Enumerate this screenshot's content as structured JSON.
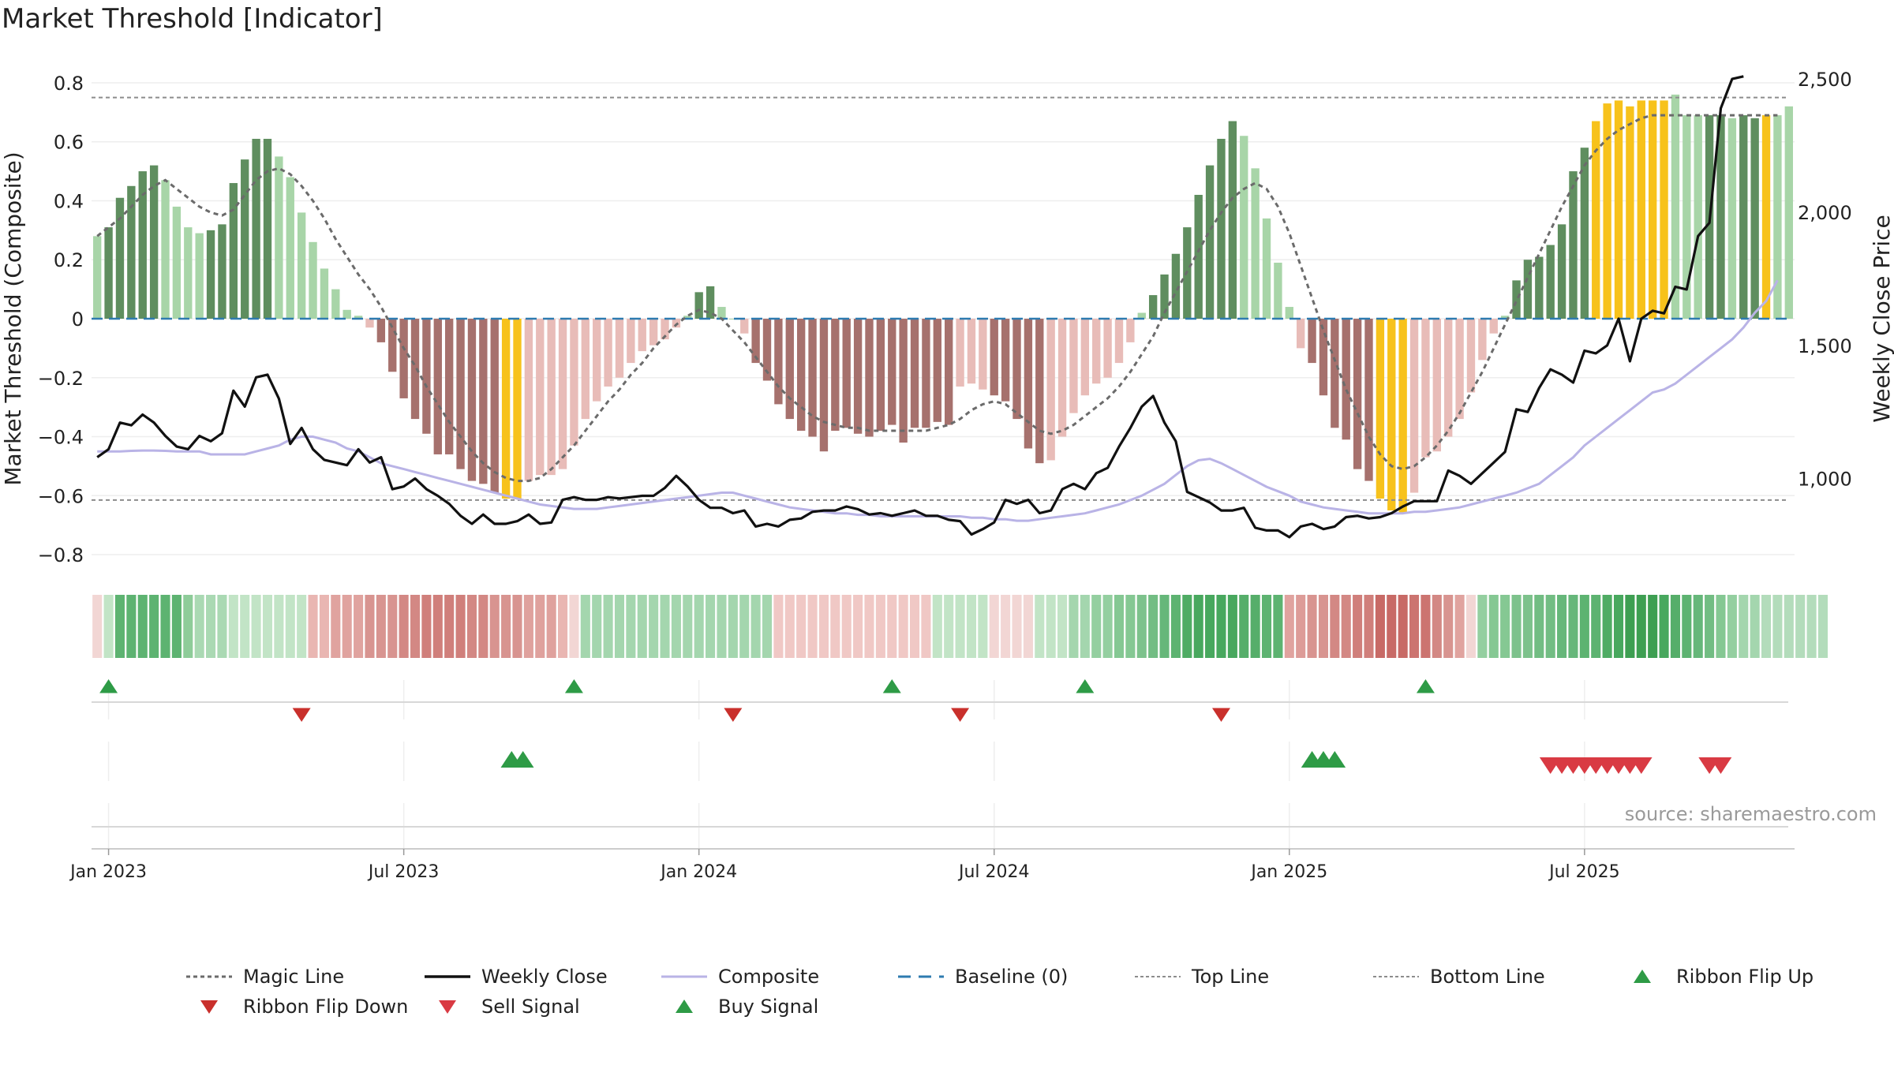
{
  "title": "Market Threshold [Indicator]",
  "source": "source: sharemaestro.com",
  "colors": {
    "strong_up": "#5f8e5f",
    "weak_up": "#a8d5a8",
    "strong_down": "#a6716d",
    "weak_down": "#e8bcb8",
    "extreme": "#f7c21b",
    "magic": "#6b6b6b",
    "close": "#111111",
    "composite": "#b9b3e6",
    "baseline": "#2e7bb0",
    "refline": "#8c8c8c",
    "buy": "#2e9b46",
    "sell": "#d93a43",
    "flip_down": "#c9302c"
  },
  "chart_data": {
    "type": "bar",
    "start_date": "2022-12-26",
    "interval_days": 7,
    "y_left": {
      "label": "Market Threshold (Composite)",
      "lim": [
        -0.84,
        0.84
      ],
      "ticks": [
        0.8,
        0.6,
        0.4,
        0.2,
        0,
        -0.2,
        -0.4,
        -0.6,
        -0.8
      ],
      "tick_labels": [
        "0.8",
        "0.6",
        "0.4",
        "0.2",
        "0",
        "−0.2",
        "−0.4",
        "−0.6",
        "−0.8"
      ]
    },
    "y_right": {
      "label": "Weekly Close Price",
      "lim": [
        670,
        2530
      ],
      "ticks": [
        2500,
        2000,
        1500,
        1000
      ],
      "tick_labels": [
        "2,500",
        "2,000",
        "1,500",
        "1,000"
      ]
    },
    "x_ticks": [
      {
        "label": "Jan 2023",
        "index": 1
      },
      {
        "label": "Jul 2023",
        "index": 27
      },
      {
        "label": "Jan 2024",
        "index": 53
      },
      {
        "label": "Jul 2024",
        "index": 79
      },
      {
        "label": "Jan 2025",
        "index": 105
      },
      {
        "label": "Jul 2025",
        "index": 131
      }
    ],
    "top_line": 0.75,
    "bottom_line": -0.615,
    "baseline": 0,
    "bar_values": [
      0.28,
      0.31,
      0.41,
      0.45,
      0.5,
      0.52,
      0.47,
      0.38,
      0.31,
      0.29,
      0.3,
      0.32,
      0.46,
      0.54,
      0.61,
      0.61,
      0.55,
      0.48,
      0.36,
      0.26,
      0.17,
      0.1,
      0.03,
      0.01,
      -0.03,
      -0.08,
      -0.18,
      -0.27,
      -0.34,
      -0.39,
      -0.46,
      -0.46,
      -0.51,
      -0.55,
      -0.56,
      -0.59,
      -0.61,
      -0.61,
      -0.55,
      -0.53,
      -0.53,
      -0.51,
      -0.43,
      -0.34,
      -0.28,
      -0.23,
      -0.2,
      -0.15,
      -0.11,
      -0.09,
      -0.07,
      -0.03,
      0.01,
      0.09,
      0.11,
      0.04,
      0.0,
      -0.05,
      -0.15,
      -0.21,
      -0.29,
      -0.34,
      -0.38,
      -0.4,
      -0.45,
      -0.38,
      -0.37,
      -0.39,
      -0.4,
      -0.38,
      -0.36,
      -0.42,
      -0.37,
      -0.37,
      -0.35,
      -0.36,
      -0.23,
      -0.22,
      -0.24,
      -0.26,
      -0.28,
      -0.34,
      -0.44,
      -0.49,
      -0.48,
      -0.4,
      -0.32,
      -0.26,
      -0.22,
      -0.2,
      -0.15,
      -0.08,
      0.02,
      0.08,
      0.15,
      0.22,
      0.31,
      0.42,
      0.52,
      0.61,
      0.67,
      0.62,
      0.51,
      0.34,
      0.19,
      0.04,
      -0.1,
      -0.15,
      -0.26,
      -0.37,
      -0.41,
      -0.51,
      -0.55,
      -0.61,
      -0.65,
      -0.66,
      -0.59,
      -0.47,
      -0.45,
      -0.4,
      -0.34,
      -0.25,
      -0.14,
      -0.05,
      0.01,
      0.13,
      0.2,
      0.21,
      0.25,
      0.32,
      0.5,
      0.58,
      0.67,
      0.73,
      0.74,
      0.72,
      0.74,
      0.74,
      0.74,
      0.76,
      0.69,
      0.69,
      0.69,
      0.69,
      0.68,
      0.69,
      0.68,
      0.69,
      0.69,
      0.72
    ],
    "bar_classes": [
      "W",
      "S",
      "S",
      "S",
      "S",
      "S",
      "W",
      "W",
      "W",
      "W",
      "S",
      "S",
      "S",
      "S",
      "S",
      "S",
      "W",
      "W",
      "W",
      "W",
      "W",
      "W",
      "W",
      "W",
      "w",
      "s",
      "s",
      "s",
      "s",
      "s",
      "s",
      "s",
      "s",
      "s",
      "s",
      "s",
      "E",
      "E",
      "w",
      "w",
      "w",
      "w",
      "w",
      "w",
      "w",
      "w",
      "w",
      "w",
      "w",
      "w",
      "w",
      "w",
      "W",
      "S",
      "S",
      "W",
      "W",
      "w",
      "s",
      "s",
      "s",
      "s",
      "s",
      "s",
      "s",
      "s",
      "s",
      "s",
      "s",
      "s",
      "s",
      "s",
      "s",
      "s",
      "s",
      "s",
      "w",
      "w",
      "w",
      "s",
      "s",
      "s",
      "s",
      "s",
      "w",
      "w",
      "w",
      "w",
      "w",
      "w",
      "w",
      "w",
      "W",
      "S",
      "S",
      "S",
      "S",
      "S",
      "S",
      "S",
      "S",
      "W",
      "W",
      "W",
      "W",
      "W",
      "w",
      "s",
      "s",
      "s",
      "s",
      "s",
      "s",
      "E",
      "E",
      "E",
      "w",
      "w",
      "w",
      "w",
      "w",
      "w",
      "w",
      "w",
      "W",
      "S",
      "S",
      "S",
      "S",
      "S",
      "S",
      "S",
      "E",
      "E",
      "E",
      "E",
      "E",
      "E",
      "E",
      "W",
      "W",
      "W",
      "S",
      "S",
      "W",
      "S",
      "S",
      "E"
    ],
    "magic_line": [
      0.28,
      0.31,
      0.34,
      0.38,
      0.42,
      0.45,
      0.47,
      0.44,
      0.41,
      0.38,
      0.36,
      0.35,
      0.37,
      0.42,
      0.47,
      0.5,
      0.51,
      0.49,
      0.45,
      0.4,
      0.34,
      0.27,
      0.21,
      0.15,
      0.1,
      0.04,
      -0.03,
      -0.1,
      -0.16,
      -0.23,
      -0.29,
      -0.35,
      -0.4,
      -0.45,
      -0.49,
      -0.52,
      -0.54,
      -0.55,
      -0.55,
      -0.54,
      -0.51,
      -0.47,
      -0.43,
      -0.38,
      -0.33,
      -0.28,
      -0.24,
      -0.19,
      -0.15,
      -0.1,
      -0.06,
      -0.02,
      0.01,
      0.03,
      0.02,
      0.0,
      -0.04,
      -0.08,
      -0.13,
      -0.18,
      -0.23,
      -0.27,
      -0.3,
      -0.33,
      -0.35,
      -0.36,
      -0.37,
      -0.37,
      -0.38,
      -0.38,
      -0.38,
      -0.38,
      -0.38,
      -0.38,
      -0.37,
      -0.36,
      -0.34,
      -0.31,
      -0.29,
      -0.28,
      -0.29,
      -0.32,
      -0.35,
      -0.38,
      -0.39,
      -0.38,
      -0.36,
      -0.33,
      -0.3,
      -0.27,
      -0.23,
      -0.18,
      -0.12,
      -0.06,
      0.02,
      0.09,
      0.16,
      0.23,
      0.3,
      0.36,
      0.41,
      0.44,
      0.46,
      0.44,
      0.38,
      0.29,
      0.18,
      0.07,
      -0.04,
      -0.14,
      -0.24,
      -0.32,
      -0.4,
      -0.46,
      -0.5,
      -0.51,
      -0.5,
      -0.47,
      -0.43,
      -0.38,
      -0.32,
      -0.25,
      -0.18,
      -0.1,
      -0.02,
      0.06,
      0.14,
      0.22,
      0.3,
      0.38,
      0.45,
      0.52,
      0.57,
      0.61,
      0.64,
      0.66,
      0.68,
      0.69,
      0.69,
      0.69,
      0.69,
      0.69,
      0.69,
      0.69,
      0.69,
      0.69,
      0.69,
      0.69,
      0.69
    ],
    "composite": [
      -0.45,
      -0.45,
      -0.45,
      -0.448,
      -0.447,
      -0.447,
      -0.448,
      -0.45,
      -0.45,
      -0.45,
      -0.46,
      -0.46,
      -0.46,
      -0.46,
      -0.45,
      -0.44,
      -0.43,
      -0.41,
      -0.4,
      -0.4,
      -0.41,
      -0.42,
      -0.44,
      -0.45,
      -0.47,
      -0.49,
      -0.5,
      -0.51,
      -0.52,
      -0.53,
      -0.54,
      -0.55,
      -0.56,
      -0.57,
      -0.58,
      -0.59,
      -0.6,
      -0.61,
      -0.62,
      -0.63,
      -0.635,
      -0.64,
      -0.645,
      -0.645,
      -0.645,
      -0.64,
      -0.635,
      -0.63,
      -0.625,
      -0.62,
      -0.615,
      -0.61,
      -0.605,
      -0.6,
      -0.595,
      -0.59,
      -0.59,
      -0.6,
      -0.61,
      -0.62,
      -0.63,
      -0.64,
      -0.645,
      -0.65,
      -0.655,
      -0.66,
      -0.66,
      -0.665,
      -0.665,
      -0.67,
      -0.67,
      -0.67,
      -0.67,
      -0.67,
      -0.67,
      -0.67,
      -0.67,
      -0.675,
      -0.675,
      -0.68,
      -0.68,
      -0.685,
      -0.685,
      -0.68,
      -0.675,
      -0.67,
      -0.665,
      -0.66,
      -0.65,
      -0.64,
      -0.63,
      -0.615,
      -0.6,
      -0.58,
      -0.56,
      -0.53,
      -0.5,
      -0.48,
      -0.475,
      -0.49,
      -0.51,
      -0.53,
      -0.55,
      -0.57,
      -0.585,
      -0.6,
      -0.62,
      -0.63,
      -0.64,
      -0.645,
      -0.65,
      -0.655,
      -0.66,
      -0.66,
      -0.66,
      -0.66,
      -0.655,
      -0.655,
      -0.65,
      -0.645,
      -0.64,
      -0.63,
      -0.62,
      -0.61,
      -0.6,
      -0.59,
      -0.575,
      -0.56,
      -0.53,
      -0.5,
      -0.47,
      -0.43,
      -0.4,
      -0.37,
      -0.34,
      -0.31,
      -0.28,
      -0.25,
      -0.24,
      -0.22,
      -0.19,
      -0.16,
      -0.13,
      -0.1,
      -0.07,
      -0.03,
      0.02,
      0.06,
      0.13
    ],
    "weekly_close": [
      1080,
      1110,
      1210,
      1200,
      1240,
      1210,
      1160,
      1120,
      1110,
      1160,
      1140,
      1170,
      1330,
      1270,
      1380,
      1390,
      1300,
      1130,
      1190,
      1110,
      1070,
      1060,
      1050,
      1110,
      1060,
      1080,
      960,
      970,
      1000,
      960,
      935,
      905,
      860,
      830,
      865,
      830,
      830,
      840,
      865,
      830,
      835,
      920,
      930,
      920,
      920,
      930,
      925,
      930,
      935,
      935,
      965,
      1010,
      970,
      920,
      890,
      890,
      870,
      880,
      820,
      830,
      820,
      845,
      850,
      875,
      880,
      880,
      895,
      885,
      865,
      870,
      860,
      870,
      880,
      860,
      860,
      845,
      840,
      790,
      810,
      835,
      920,
      905,
      920,
      870,
      880,
      960,
      980,
      960,
      1020,
      1040,
      1120,
      1190,
      1270,
      1310,
      1210,
      1140,
      950,
      930,
      910,
      880,
      880,
      890,
      815,
      805,
      805,
      780,
      820,
      830,
      810,
      820,
      855,
      860,
      850,
      855,
      870,
      895,
      915,
      915,
      915,
      1030,
      1010,
      980,
      1020,
      1060,
      1100,
      1260,
      1250,
      1340,
      1410,
      1390,
      1360,
      1480,
      1470,
      1500,
      1600,
      1440,
      1600,
      1630,
      1620,
      1720,
      1710,
      1910,
      1960,
      2390,
      2500,
      2510
    ]
  },
  "ribbon": {
    "colors": [
      "#f2d6d4",
      "#c2e4c6",
      "#5db371",
      "#5db371",
      "#5db371",
      "#5db371",
      "#5db371",
      "#5db371",
      "#8ecc99",
      "#aad9b3",
      "#aad9b3",
      "#aad9b3",
      "#c2e4c6",
      "#c2e4c6",
      "#c2e4c6",
      "#c2e4c6",
      "#c2e4c6",
      "#c2e4c6",
      "#c2e4c6",
      "#e9b6b2",
      "#e9b6b2",
      "#e0a39f",
      "#e0a39f",
      "#e0a39f",
      "#d89490",
      "#d89490",
      "#d89490",
      "#d38884",
      "#d38884",
      "#d07f7b",
      "#d07f7b",
      "#d07f7b",
      "#d07f7b",
      "#d38884",
      "#d38884",
      "#d89490",
      "#d89490",
      "#d89490",
      "#dfa19d",
      "#dfa19d",
      "#dfa19d",
      "#e9b6b2",
      "#f2d6d4",
      "#a4d6ae",
      "#a4d6ae",
      "#a4d6ae",
      "#a4d6ae",
      "#a4d6ae",
      "#a4d6ae",
      "#a4d6ae",
      "#a4d6ae",
      "#a4d6ae",
      "#a4d6ae",
      "#a4d6ae",
      "#a4d6ae",
      "#a4d6ae",
      "#a4d6ae",
      "#a4d6ae",
      "#a4d6ae",
      "#a4d6ae",
      "#f0c8c5",
      "#f0c8c5",
      "#f0c8c5",
      "#f0c8c5",
      "#f0c8c5",
      "#f0c8c5",
      "#f0c8c5",
      "#f0c8c5",
      "#f0c8c5",
      "#f0c8c5",
      "#f0c8c5",
      "#f0c8c5",
      "#f0c8c5",
      "#f0c8c5",
      "#c2e4c6",
      "#c2e4c6",
      "#c2e4c6",
      "#c2e4c6",
      "#c2e4c6",
      "#f2d6d4",
      "#f2d6d4",
      "#f2d6d4",
      "#f2d6d4",
      "#c2e4c6",
      "#c2e4c6",
      "#c2e4c6",
      "#a4d6ae",
      "#a4d6ae",
      "#94cfa0",
      "#94cfa0",
      "#85c893",
      "#85c893",
      "#7dc28c",
      "#72bd83",
      "#66b77a",
      "#5db371",
      "#4fac64",
      "#48a85e",
      "#48a85e",
      "#48a85e",
      "#48a85e",
      "#56ae6a",
      "#56ae6a",
      "#5db371",
      "#5db371",
      "#e0a39f",
      "#dd9c98",
      "#d89490",
      "#d89490",
      "#d38884",
      "#d38884",
      "#d07f7b",
      "#d07f7b",
      "#c86a66",
      "#c86a66",
      "#c86a66",
      "#cc7470",
      "#cc7470",
      "#d38884",
      "#d89490",
      "#e0a39f",
      "#f2d6d4",
      "#94cfa0",
      "#85c893",
      "#85c893",
      "#7dc28c",
      "#7dc28c",
      "#72bd83",
      "#72bd83",
      "#66b77a",
      "#66b77a",
      "#5db371",
      "#5db371",
      "#4fac64",
      "#48a85e",
      "#3e9f52",
      "#3e9f52",
      "#3e9f52",
      "#48a85e",
      "#56ae6a",
      "#5db371",
      "#66b77a",
      "#72bd83",
      "#85c893",
      "#94cfa0",
      "#a4d6ae",
      "#a4d6ae",
      "#b3dcbb",
      "#b3dcbb",
      "#b3dcbb",
      "#b3dcbb",
      "#b3dcbb",
      "#b3dcbb"
    ]
  },
  "signals": {
    "ribbon_flip_up": [
      1,
      42,
      70,
      87,
      117
    ],
    "ribbon_flip_down": [
      18,
      56,
      76,
      99
    ],
    "buy": [
      36.5,
      37.5,
      107,
      108,
      109
    ],
    "sell": [
      128,
      129,
      130,
      131,
      132,
      133,
      134,
      135,
      136,
      142,
      143
    ]
  },
  "legend": [
    {
      "label": "Magic Line",
      "kind": "magic"
    },
    {
      "label": "Weekly Close",
      "kind": "close"
    },
    {
      "label": "Composite",
      "kind": "composite"
    },
    {
      "label": "Baseline (0)",
      "kind": "baseline"
    },
    {
      "label": "Top Line",
      "kind": "refline"
    },
    {
      "label": "Bottom Line",
      "kind": "refline"
    },
    {
      "label": "Ribbon Flip Up",
      "kind": "flip_up"
    },
    {
      "label": "Ribbon Flip Down",
      "kind": "flip_down"
    },
    {
      "label": "Sell Signal",
      "kind": "sell"
    },
    {
      "label": "Buy Signal",
      "kind": "buy"
    }
  ]
}
